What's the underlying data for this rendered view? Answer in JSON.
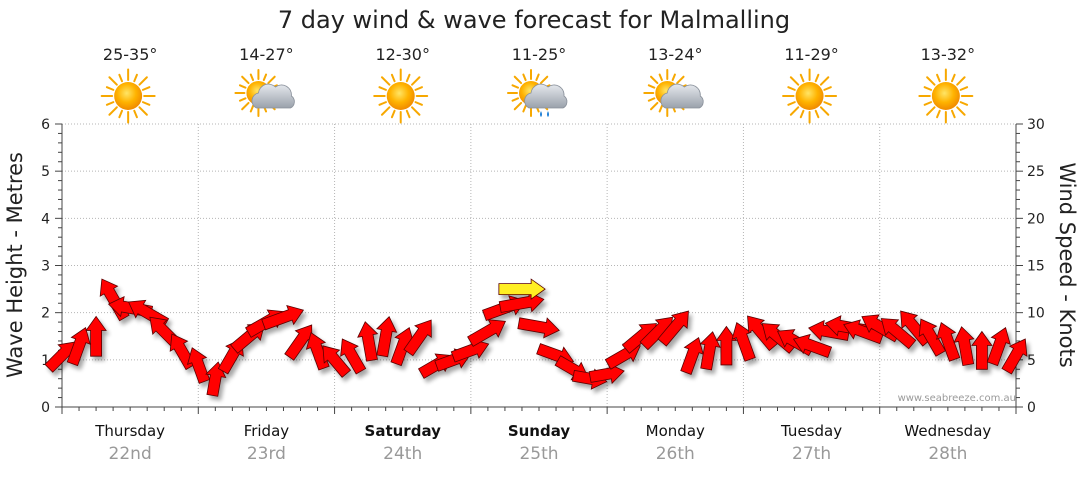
{
  "chart_data": {
    "type": "line",
    "title": "7 day wind & wave forecast for Malmalling",
    "ylabel": "Wave Height - Metres",
    "y2label": "Wind Speed - Knots",
    "ylim": [
      0,
      6
    ],
    "y2lim": [
      0,
      30
    ],
    "y_ticks": [
      "0",
      "1",
      "2",
      "3",
      "4",
      "5",
      "6"
    ],
    "y2_ticks": [
      "0",
      "5",
      "10",
      "15",
      "20",
      "25",
      "30"
    ],
    "watermark": "www.seabreeze.com.au",
    "days": [
      {
        "name": "Thursday",
        "date": "22nd",
        "bold": false,
        "temp": "25-35°",
        "weather": "sunny"
      },
      {
        "name": "Friday",
        "date": "23rd",
        "bold": false,
        "temp": "14-27°",
        "weather": "partly-cloudy"
      },
      {
        "name": "Saturday",
        "date": "24th",
        "bold": true,
        "temp": "12-30°",
        "weather": "sunny"
      },
      {
        "name": "Sunday",
        "date": "25th",
        "bold": true,
        "temp": "11-25°",
        "weather": "showers"
      },
      {
        "name": "Monday",
        "date": "26th",
        "bold": false,
        "temp": "13-24°",
        "weather": "partly-cloudy"
      },
      {
        "name": "Tuesday",
        "date": "27th",
        "bold": false,
        "temp": "11-29°",
        "weather": "sunny"
      },
      {
        "name": "Wednesday",
        "date": "28th",
        "bold": false,
        "temp": "13-32°",
        "weather": "sunny"
      }
    ],
    "series": [
      {
        "name": "Wind Speed (knots)",
        "x_hours": [
          0,
          3,
          6,
          9,
          12,
          15,
          18,
          21,
          24,
          27,
          30,
          33,
          36,
          39,
          42,
          45,
          48,
          51,
          54,
          57,
          60,
          63,
          66,
          69,
          72,
          75,
          78,
          81,
          84,
          87,
          90,
          93,
          96,
          99,
          102,
          105,
          108,
          111,
          114,
          117,
          120,
          123,
          126,
          129,
          132,
          135,
          138,
          141,
          144,
          147,
          150,
          153,
          156,
          159,
          162,
          165,
          168
        ],
        "values": [
          5.5,
          6.5,
          7.5,
          11.5,
          10.5,
          10,
          8,
          6,
          4.5,
          3,
          5.5,
          7.5,
          9,
          9.5,
          7,
          6,
          5,
          5.5,
          7,
          7.5,
          6.5,
          7.5,
          4.5,
          5,
          6,
          8,
          10.5,
          11,
          8.5,
          5.5,
          4,
          3,
          3.5,
          5.5,
          7.5,
          8,
          8.5,
          5.5,
          6,
          6.5,
          7,
          8,
          7.5,
          7,
          6.5,
          8,
          8.5,
          8,
          8.5,
          8,
          8.5,
          7.5,
          7,
          6.5,
          6,
          6.5,
          5.5
        ]
      },
      {
        "name": "Wind Direction (deg, from)",
        "x_hours": [
          0,
          3,
          6,
          9,
          12,
          15,
          18,
          21,
          24,
          27,
          30,
          33,
          36,
          39,
          42,
          45,
          48,
          51,
          54,
          57,
          60,
          63,
          66,
          69,
          72,
          75,
          78,
          81,
          84,
          87,
          90,
          93,
          96,
          99,
          102,
          105,
          108,
          111,
          114,
          117,
          120,
          123,
          126,
          129,
          132,
          135,
          138,
          141,
          144,
          147,
          150,
          153,
          156,
          159,
          162,
          165,
          168
        ],
        "values": [
          225,
          200,
          180,
          150,
          100,
          120,
          135,
          150,
          160,
          190,
          210,
          230,
          240,
          250,
          215,
          160,
          140,
          150,
          170,
          190,
          200,
          215,
          240,
          250,
          250,
          240,
          250,
          260,
          280,
          290,
          300,
          280,
          260,
          240,
          230,
          225,
          220,
          200,
          190,
          180,
          160,
          140,
          130,
          120,
          110,
          100,
          100,
          110,
          120,
          130,
          140,
          150,
          160,
          170,
          180,
          200,
          210
        ]
      },
      {
        "name": "Wave Height (m)",
        "x_hours": [],
        "values": []
      }
    ],
    "highlight_arrow": {
      "hour": 81,
      "speed": 12.5,
      "direction": 270,
      "color": "#ffee22"
    }
  }
}
